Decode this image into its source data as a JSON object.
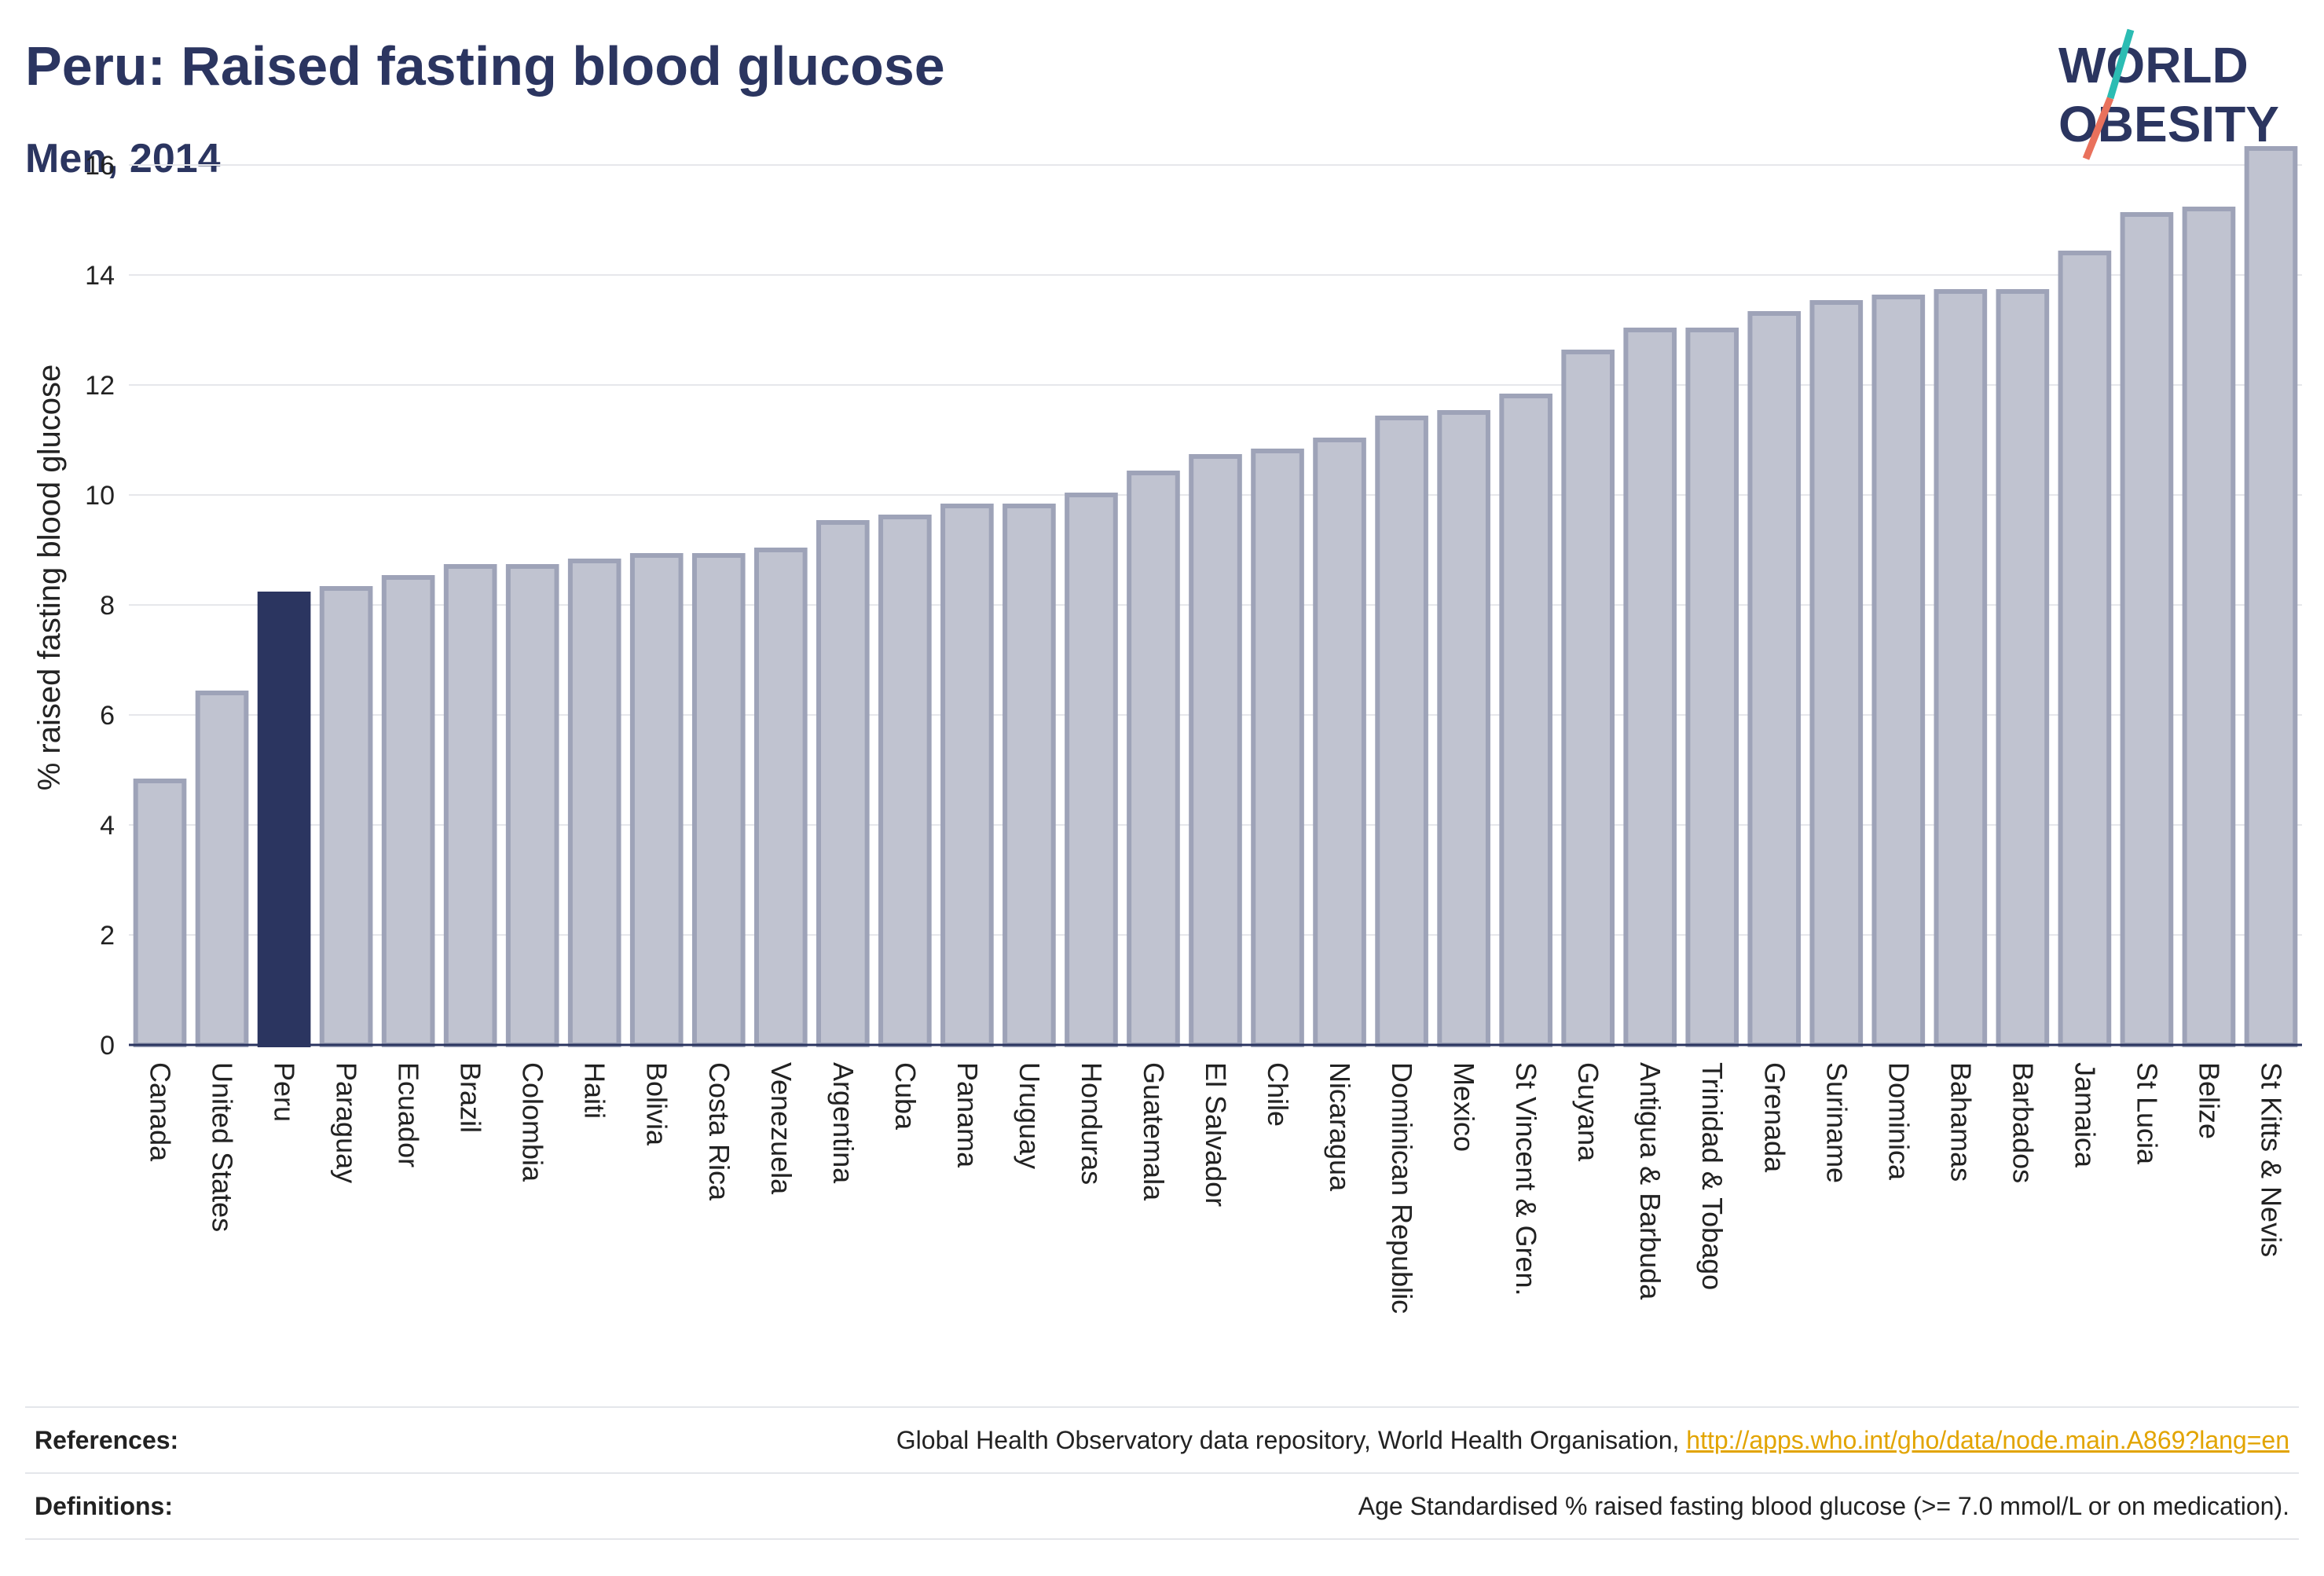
{
  "title": "Peru: Raised fasting blood glucose",
  "subtitle": "Men, 2014",
  "logo": {
    "line1": "WORLD",
    "line2": "OBESITY"
  },
  "colors": {
    "highlight": "#2b3560",
    "bar_fill": "#c0c3d0",
    "bar_stroke": "#9ea3b8",
    "grid": "#e6e7eb",
    "title": "#2b3560",
    "logo_teal": "#2bbcb3",
    "logo_coral": "#e9715c",
    "link": "#e2a400"
  },
  "chart_data": {
    "type": "bar",
    "highlight": "Peru",
    "ylabel": "% raised fasting blood glucose",
    "xlabel": "",
    "ylim": [
      0,
      17
    ],
    "yticks": [
      0,
      2,
      4,
      6,
      8,
      10,
      12,
      14,
      16
    ],
    "grid": true,
    "categories": [
      "Canada",
      "United States",
      "Peru",
      "Paraguay",
      "Ecuador",
      "Brazil",
      "Colombia",
      "Haiti",
      "Bolivia",
      "Costa Rica",
      "Venezuela",
      "Argentina",
      "Cuba",
      "Panama",
      "Uruguay",
      "Honduras",
      "Guatemala",
      "El Salvador",
      "Chile",
      "Nicaragua",
      "Dominican Republic",
      "Mexico",
      "St Vincent & Gren.",
      "Guyana",
      "Antigua & Barbuda",
      "Trinidad & Tobago",
      "Grenada",
      "Suriname",
      "Dominica",
      "Bahamas",
      "Barbados",
      "Jamaica",
      "St Lucia",
      "Belize",
      "St Kitts & Nevis"
    ],
    "values": [
      4.8,
      6.4,
      8.2,
      8.3,
      8.5,
      8.7,
      8.7,
      8.8,
      8.9,
      8.9,
      9.0,
      9.5,
      9.6,
      9.8,
      9.8,
      10.0,
      10.4,
      10.7,
      10.8,
      11.0,
      11.4,
      11.5,
      11.8,
      12.6,
      13.0,
      13.0,
      13.3,
      13.5,
      13.6,
      13.7,
      13.7,
      14.4,
      15.1,
      15.2,
      16.3
    ]
  },
  "footer": {
    "references_label": "References:",
    "references_text": "Global Health Observatory data repository, World Health Organisation,",
    "references_link": "http://apps.who.int/gho/data/node.main.A869?lang=en",
    "definitions_label": "Definitions:",
    "definitions_text": "Age Standardised % raised fasting blood glucose (>= 7.0 mmol/L or on medication)."
  }
}
